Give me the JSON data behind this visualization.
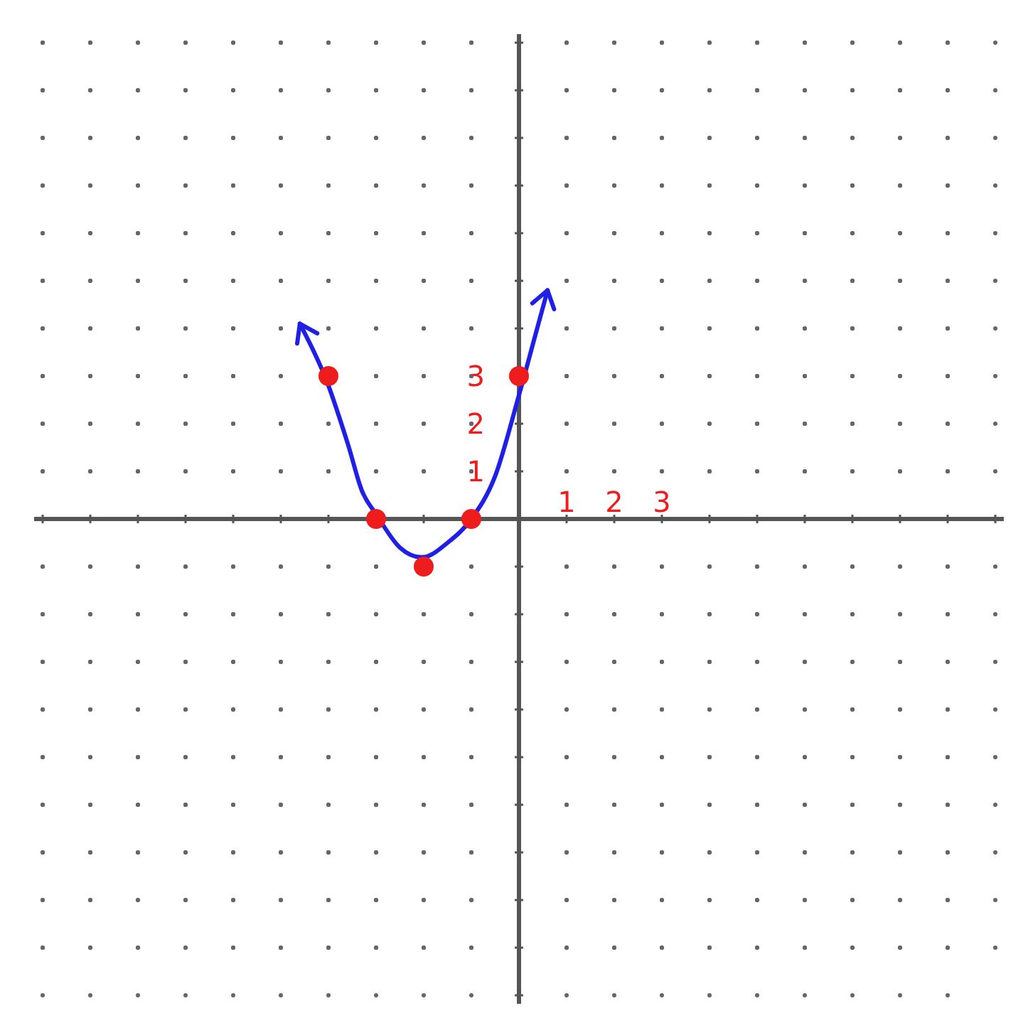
{
  "chart_data": {
    "type": "scatter",
    "xlim": [
      -10,
      10
    ],
    "ylim": [
      -10,
      10
    ],
    "xticks": [
      {
        "value": -10,
        "label": null
      },
      {
        "value": -9,
        "label": null
      },
      {
        "value": -8,
        "label": null
      },
      {
        "value": -7,
        "label": null
      },
      {
        "value": -6,
        "label": null
      },
      {
        "value": -5,
        "label": null
      },
      {
        "value": -4,
        "label": null
      },
      {
        "value": -3,
        "label": null
      },
      {
        "value": -2,
        "label": null
      },
      {
        "value": -1,
        "label": null
      },
      {
        "value": 0,
        "label": null
      },
      1,
      2,
      3,
      {
        "value": 4,
        "label": null
      },
      {
        "value": 5,
        "label": null
      },
      {
        "value": 6,
        "label": null
      },
      {
        "value": 7,
        "label": null
      },
      {
        "value": 8,
        "label": null
      },
      {
        "value": 9,
        "label": null
      },
      {
        "value": 10,
        "label": null
      }
    ],
    "yticks": [
      {
        "value": -10,
        "label": null
      },
      {
        "value": -9,
        "label": null
      },
      {
        "value": -8,
        "label": null
      },
      {
        "value": -7,
        "label": null
      },
      {
        "value": -6,
        "label": null
      },
      {
        "value": -5,
        "label": null
      },
      {
        "value": -4,
        "label": null
      },
      {
        "value": -3,
        "label": null
      },
      {
        "value": -2,
        "label": null
      },
      {
        "value": -1,
        "label": null
      },
      {
        "value": 0,
        "label": null
      },
      1,
      2,
      3,
      {
        "value": 4,
        "label": null
      },
      {
        "value": 5,
        "label": null
      },
      {
        "value": 6,
        "label": null
      },
      {
        "value": 7,
        "label": null
      },
      {
        "value": 8,
        "label": null
      },
      {
        "value": 9,
        "label": null
      },
      {
        "value": 10,
        "label": null
      }
    ],
    "grid": true,
    "series": [
      {
        "type": "line",
        "color": "#1f1fe6",
        "x": [
          -4.6,
          -4.3,
          -4,
          -3.6,
          -3.3,
          -3,
          -2.5,
          -2,
          -1.5,
          -1,
          -0.5,
          0,
          0.3,
          0.6
        ],
        "values": [
          4.1,
          3.5,
          2.8,
          1.6,
          0.6,
          0.1,
          -0.6,
          -0.8,
          -0.5,
          0,
          0.9,
          2.6,
          3.7,
          4.8
        ]
      },
      {
        "color": "#ee1c1c",
        "marker": "circle",
        "x": [
          -4,
          -3,
          -2,
          -1,
          0
        ],
        "values": [
          3,
          0,
          -1,
          0,
          3
        ]
      }
    ]
  }
}
